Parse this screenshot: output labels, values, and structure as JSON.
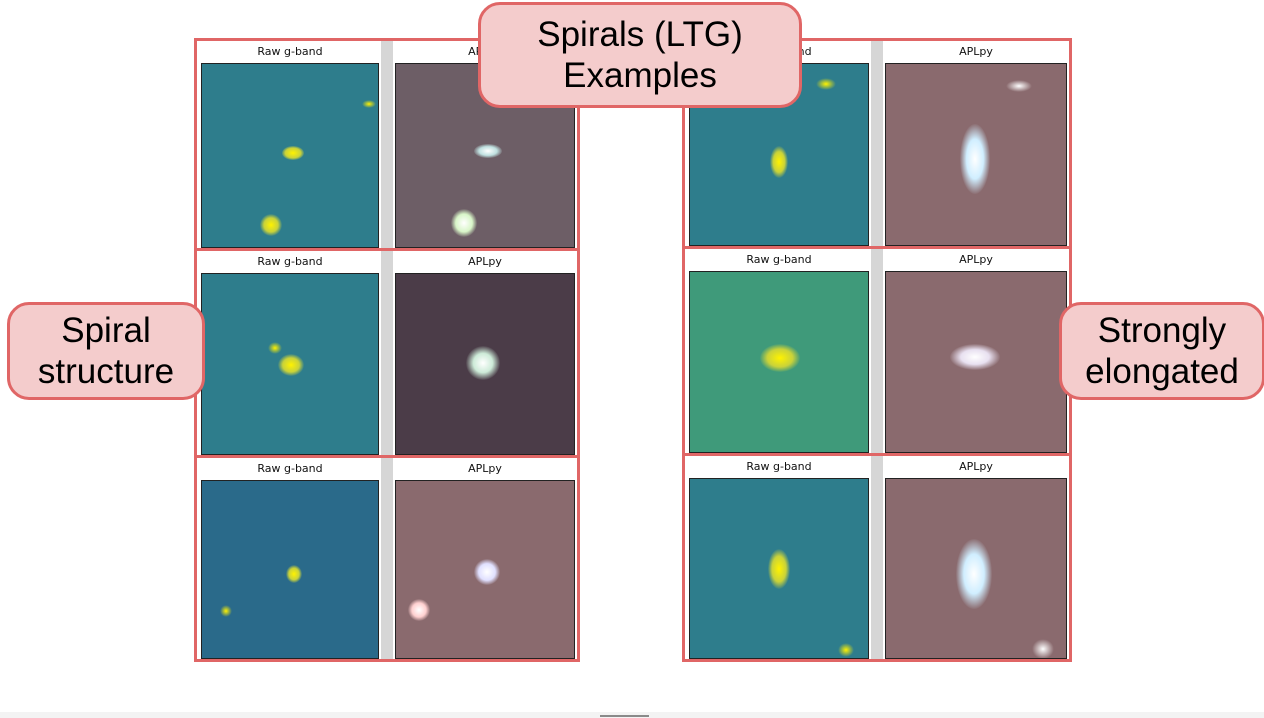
{
  "title_box": {
    "line1": "Spirals (LTG)",
    "line2": "Examples"
  },
  "left_label": {
    "line1": "Spiral",
    "line2": "structure"
  },
  "right_label": {
    "line1": "Strongly",
    "line2": "elongated"
  },
  "colors": {
    "accent_border": "#e06666",
    "label_fill": "#f4cccc"
  },
  "left_group": {
    "rows": [
      {
        "raw_title": "Raw g-band",
        "apl_title": "APLpy"
      },
      {
        "raw_title": "Raw g-band",
        "apl_title": "APLpy"
      },
      {
        "raw_title": "Raw g-band",
        "apl_title": "APLpy"
      }
    ]
  },
  "right_group": {
    "rows": [
      {
        "raw_title": "Raw g-band",
        "apl_title": "APLpy"
      },
      {
        "raw_title": "Raw g-band",
        "apl_title": "APLpy"
      },
      {
        "raw_title": "Raw g-band",
        "apl_title": "APLpy"
      }
    ]
  }
}
